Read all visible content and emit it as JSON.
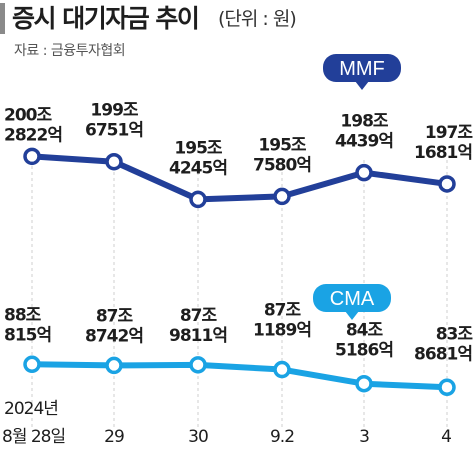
{
  "title": "증시 대기자금 추이",
  "unit": "(단위 : 원)",
  "source": "자료 : 금융투자협회",
  "colors": {
    "mmf": "#223f99",
    "cma": "#1aa3e4",
    "grid": "#cfcfcf"
  },
  "chart_data": [
    {
      "type": "line",
      "title": "MMF",
      "categories": [
        "2024-08-28",
        "2024-08-29",
        "2024-08-30",
        "2024-09-02",
        "2024-09-03",
        "2024-09-04"
      ],
      "series": [
        {
          "name": "MMF",
          "values": [
            2002822,
            1996751,
            1954245,
            1957580,
            1984439,
            1971681
          ],
          "value_unit": "억원",
          "labels": [
            [
              "200조",
              "2822억"
            ],
            [
              "199조",
              "6751억"
            ],
            [
              "195조",
              "4245억"
            ],
            [
              "195조",
              "7580억"
            ],
            [
              "198조",
              "4439억"
            ],
            [
              "197조",
              "1681억"
            ]
          ]
        }
      ],
      "ylim": [
        1940000,
        2010000
      ]
    },
    {
      "type": "line",
      "title": "CMA",
      "categories": [
        "2024-08-28",
        "2024-08-29",
        "2024-08-30",
        "2024-09-02",
        "2024-09-03",
        "2024-09-04"
      ],
      "series": [
        {
          "name": "CMA",
          "values": [
            880815,
            878742,
            879811,
            871189,
            845186,
            838681
          ],
          "value_unit": "억원",
          "labels": [
            [
              "88조",
              "815억"
            ],
            [
              "87조",
              "8742억"
            ],
            [
              "87조",
              "9811억"
            ],
            [
              "87조",
              "1189억"
            ],
            [
              "84조",
              "5186억"
            ],
            [
              "83조",
              "8681억"
            ]
          ]
        }
      ],
      "ylim": [
        830000,
        885000
      ]
    }
  ],
  "xaxis": {
    "year_label": "2024년",
    "ticks": [
      "8월 28일",
      "29",
      "30",
      "9.2",
      "3",
      "4"
    ]
  }
}
